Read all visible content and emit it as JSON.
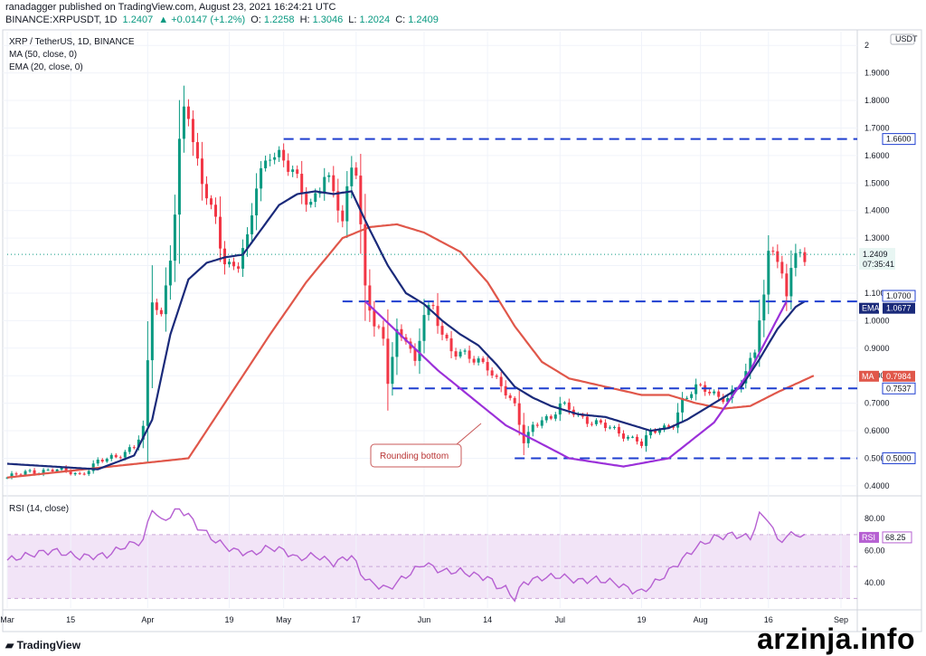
{
  "header": {
    "published_line": "ranadagger published on TradingView.com, August 23, 2021 16:24:21 UTC",
    "symbol": "BINANCE:XRPUSDT, 1D",
    "last": "1.2407",
    "change": "▲ +0.0147 (+1.2%)",
    "o_label": "O:",
    "o_value": "1.2258",
    "h_label": "H:",
    "h_value": "1.3046",
    "l_label": "L:",
    "l_value": "1.2024",
    "c_label": "C:",
    "c_value": "1.2409"
  },
  "legend": {
    "title": "XRP / TetherUS, 1D, BINANCE",
    "ma": "MA (50, close, 0)",
    "ema": "EMA (20, close, 0)",
    "rsi": "RSI (14, close)"
  },
  "footer": {
    "brand": "TradingView",
    "watermark": "arzinja.info"
  },
  "colors": {
    "up": "#089981",
    "down": "#f23645",
    "ma": "#e0574a",
    "ema": "#1a2a7a",
    "pattern": "#9b30d9",
    "level": "#1f3fd0",
    "rsi": "#b660d2",
    "rsi_band": "#f2e4f7"
  },
  "chart_data": {
    "type": "candlestick",
    "price_axis": {
      "currency": "USDT",
      "ticks": [
        "2",
        "1.9000",
        "1.8000",
        "1.7000",
        "1.6000",
        "1.5000",
        "1.4000",
        "1.3000",
        "1.2000",
        "1.1000",
        "1.0000",
        "0.9000",
        "0.8000",
        "0.7000",
        "0.6000",
        "0.5000",
        "0.4000"
      ],
      "tick_values": [
        2.0,
        1.9,
        1.8,
        1.7,
        1.6,
        1.5,
        1.4,
        1.3,
        1.2,
        1.1,
        1.0,
        0.9,
        0.8,
        0.7,
        0.6,
        0.5,
        0.4
      ],
      "range": [
        0.37,
        2.05
      ]
    },
    "time_axis": {
      "labels": [
        "Mar",
        "15",
        "Apr",
        "19",
        "May",
        "17",
        "Jun",
        "14",
        "Jul",
        "19",
        "Aug",
        "16",
        "Sep"
      ],
      "day_index": [
        0,
        14,
        31,
        49,
        61,
        77,
        92,
        106,
        122,
        140,
        153,
        168,
        184
      ],
      "total_days": 186
    },
    "price_anchors": [
      [
        0,
        0.43
      ],
      [
        5,
        0.45
      ],
      [
        10,
        0.46
      ],
      [
        16,
        0.44
      ],
      [
        20,
        0.49
      ],
      [
        24,
        0.5
      ],
      [
        28,
        0.55
      ],
      [
        30,
        0.61
      ],
      [
        32,
        1.07
      ],
      [
        34,
        1.0
      ],
      [
        36,
        1.25
      ],
      [
        37,
        1.4
      ],
      [
        38,
        1.65
      ],
      [
        39,
        1.8
      ],
      [
        40,
        1.76
      ],
      [
        41,
        1.62
      ],
      [
        42,
        1.55
      ],
      [
        43,
        1.5
      ],
      [
        45,
        1.4
      ],
      [
        46,
        1.38
      ],
      [
        48,
        1.22
      ],
      [
        49,
        1.2
      ],
      [
        51,
        1.2
      ],
      [
        53,
        1.28
      ],
      [
        55,
        1.5
      ],
      [
        58,
        1.63
      ],
      [
        60,
        1.59
      ],
      [
        62,
        1.55
      ],
      [
        64,
        1.5
      ],
      [
        67,
        1.43
      ],
      [
        70,
        1.53
      ],
      [
        73,
        1.41
      ],
      [
        74,
        1.35
      ],
      [
        76,
        1.58
      ],
      [
        77,
        1.57
      ],
      [
        78,
        1.35
      ],
      [
        79,
        1.12
      ],
      [
        80,
        1.05
      ],
      [
        81,
        0.98
      ],
      [
        83,
        0.92
      ],
      [
        84,
        0.78
      ],
      [
        86,
        0.96
      ],
      [
        88,
        0.95
      ],
      [
        90,
        0.84
      ],
      [
        92,
        1.02
      ],
      [
        94,
        1.04
      ],
      [
        96,
        0.96
      ],
      [
        98,
        0.9
      ],
      [
        100,
        0.88
      ],
      [
        103,
        0.85
      ],
      [
        106,
        0.84
      ],
      [
        108,
        0.79
      ],
      [
        110,
        0.74
      ],
      [
        112,
        0.68
      ],
      [
        114,
        0.56
      ],
      [
        116,
        0.62
      ],
      [
        118,
        0.65
      ],
      [
        120,
        0.64
      ],
      [
        122,
        0.69
      ],
      [
        125,
        0.67
      ],
      [
        128,
        0.64
      ],
      [
        131,
        0.62
      ],
      [
        134,
        0.6
      ],
      [
        137,
        0.58
      ],
      [
        139,
        0.57
      ],
      [
        140,
        0.55
      ],
      [
        142,
        0.59
      ],
      [
        145,
        0.61
      ],
      [
        147,
        0.63
      ],
      [
        149,
        0.71
      ],
      [
        152,
        0.75
      ],
      [
        154,
        0.75
      ],
      [
        157,
        0.73
      ],
      [
        159,
        0.72
      ],
      [
        161,
        0.75
      ],
      [
        163,
        0.8
      ],
      [
        165,
        0.9
      ],
      [
        166,
        1.02
      ],
      [
        167,
        1.09
      ],
      [
        168,
        1.26
      ],
      [
        169,
        1.28
      ],
      [
        171,
        1.14
      ],
      [
        172,
        1.08
      ],
      [
        173,
        1.2
      ],
      [
        174,
        1.23
      ],
      [
        176,
        1.24
      ]
    ],
    "ma50": [
      [
        0,
        0.43
      ],
      [
        40,
        0.5
      ],
      [
        50,
        0.75
      ],
      [
        58,
        0.95
      ],
      [
        66,
        1.14
      ],
      [
        74,
        1.3
      ],
      [
        80,
        1.34
      ],
      [
        86,
        1.35
      ],
      [
        92,
        1.32
      ],
      [
        100,
        1.25
      ],
      [
        106,
        1.14
      ],
      [
        112,
        0.98
      ],
      [
        118,
        0.85
      ],
      [
        124,
        0.79
      ],
      [
        132,
        0.76
      ],
      [
        140,
        0.73
      ],
      [
        146,
        0.73
      ],
      [
        152,
        0.7
      ],
      [
        158,
        0.68
      ],
      [
        164,
        0.69
      ],
      [
        170,
        0.74
      ],
      [
        178,
        0.8
      ]
    ],
    "ema20": [
      [
        0,
        0.48
      ],
      [
        20,
        0.46
      ],
      [
        28,
        0.51
      ],
      [
        32,
        0.64
      ],
      [
        36,
        0.95
      ],
      [
        40,
        1.15
      ],
      [
        44,
        1.21
      ],
      [
        48,
        1.23
      ],
      [
        52,
        1.24
      ],
      [
        56,
        1.33
      ],
      [
        60,
        1.42
      ],
      [
        64,
        1.46
      ],
      [
        68,
        1.47
      ],
      [
        72,
        1.46
      ],
      [
        76,
        1.47
      ],
      [
        80,
        1.33
      ],
      [
        84,
        1.2
      ],
      [
        88,
        1.1
      ],
      [
        92,
        1.06
      ],
      [
        96,
        1.0
      ],
      [
        100,
        0.95
      ],
      [
        104,
        0.91
      ],
      [
        108,
        0.84
      ],
      [
        112,
        0.76
      ],
      [
        116,
        0.72
      ],
      [
        120,
        0.69
      ],
      [
        126,
        0.66
      ],
      [
        132,
        0.65
      ],
      [
        138,
        0.62
      ],
      [
        142,
        0.6
      ],
      [
        146,
        0.61
      ],
      [
        150,
        0.64
      ],
      [
        154,
        0.68
      ],
      [
        158,
        0.72
      ],
      [
        162,
        0.76
      ],
      [
        166,
        0.86
      ],
      [
        170,
        0.97
      ],
      [
        174,
        1.05
      ],
      [
        176,
        1.07
      ]
    ],
    "horizontal_levels": [
      {
        "value": 1.66,
        "label": "1.6600",
        "from_day": 61
      },
      {
        "value": 1.07,
        "label": "1.0700",
        "from_day": 74
      },
      {
        "value": 0.7537,
        "label": "0.7537",
        "from_day": 85
      },
      {
        "value": 0.5,
        "label": "0.5000",
        "from_day": 112
      }
    ],
    "rounding_bottom": {
      "label": "Rounding bottom",
      "points": [
        [
          79,
          1.07
        ],
        [
          95,
          0.82
        ],
        [
          110,
          0.62
        ],
        [
          124,
          0.5
        ],
        [
          136,
          0.47
        ],
        [
          146,
          0.5
        ],
        [
          156,
          0.63
        ],
        [
          164,
          0.82
        ],
        [
          172,
          1.07
        ]
      ]
    },
    "price_tags": [
      {
        "name": "",
        "value": "1.6600",
        "price": 1.66,
        "style": "level"
      },
      {
        "name": "",
        "value": "1.2409",
        "price": 1.2409,
        "style": "last",
        "sub": "07:35:41"
      },
      {
        "name": "",
        "value": "1.0700",
        "price": 1.09,
        "style": "level"
      },
      {
        "name": "EMA",
        "value": "1.0677",
        "price": 1.045,
        "style": "ema"
      },
      {
        "name": "MA",
        "value": "0.7984",
        "price": 0.798,
        "style": "ma"
      },
      {
        "name": "",
        "value": "0.7537",
        "price": 0.7537,
        "style": "level"
      },
      {
        "name": "",
        "value": "0.5000",
        "price": 0.5,
        "style": "level"
      }
    ],
    "rsi": {
      "range": [
        24,
        92
      ],
      "ticks": [
        "80.00",
        "60.00",
        "40.00"
      ],
      "tick_values": [
        80,
        60,
        40
      ],
      "band": [
        30,
        70
      ],
      "mid": 50,
      "last": "68.25",
      "anchors": [
        [
          0,
          54
        ],
        [
          6,
          58
        ],
        [
          10,
          60
        ],
        [
          16,
          56
        ],
        [
          22,
          57
        ],
        [
          26,
          63
        ],
        [
          30,
          66
        ],
        [
          32,
          87
        ],
        [
          34,
          78
        ],
        [
          36,
          82
        ],
        [
          38,
          86
        ],
        [
          40,
          82
        ],
        [
          42,
          75
        ],
        [
          46,
          66
        ],
        [
          50,
          60
        ],
        [
          54,
          58
        ],
        [
          58,
          62
        ],
        [
          61,
          60
        ],
        [
          64,
          55
        ],
        [
          68,
          57
        ],
        [
          72,
          52
        ],
        [
          76,
          57
        ],
        [
          78,
          46
        ],
        [
          80,
          40
        ],
        [
          84,
          36
        ],
        [
          88,
          44
        ],
        [
          92,
          52
        ],
        [
          96,
          47
        ],
        [
          100,
          47
        ],
        [
          104,
          44
        ],
        [
          106,
          43
        ],
        [
          108,
          38
        ],
        [
          110,
          36
        ],
        [
          112,
          30
        ],
        [
          114,
          40
        ],
        [
          118,
          43
        ],
        [
          122,
          44
        ],
        [
          126,
          41
        ],
        [
          130,
          42
        ],
        [
          134,
          40
        ],
        [
          138,
          35
        ],
        [
          140,
          34
        ],
        [
          144,
          42
        ],
        [
          148,
          52
        ],
        [
          152,
          62
        ],
        [
          156,
          68
        ],
        [
          160,
          70
        ],
        [
          164,
          68
        ],
        [
          166,
          82
        ],
        [
          168,
          80
        ],
        [
          170,
          66
        ],
        [
          174,
          71
        ],
        [
          176,
          68
        ]
      ]
    }
  }
}
